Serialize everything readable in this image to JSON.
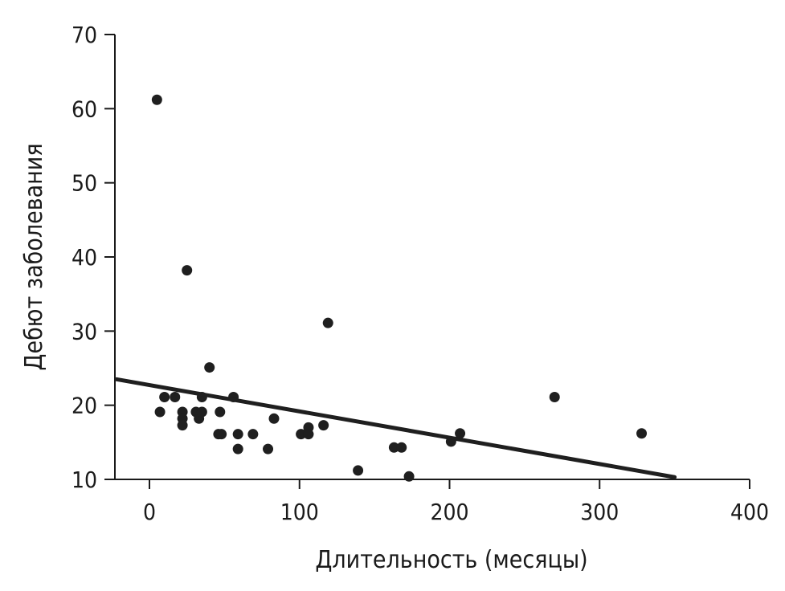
{
  "chart_data": {
    "type": "scatter",
    "title": "",
    "xlabel": "Длительность (месяцы)",
    "ylabel": "Дебют заболевания",
    "xlim": [
      -22,
      400
    ],
    "ylim": [
      10,
      70
    ],
    "xticks": [
      0,
      100,
      200,
      300,
      400
    ],
    "yticks": [
      10,
      20,
      30,
      40,
      50,
      60,
      70
    ],
    "grid": false,
    "legend": "none",
    "colors": {
      "points": "#1f1f1f",
      "trend": "#1f1f1f",
      "axes": "#1a1a1a"
    },
    "series": [
      {
        "points": [
          {
            "x": 5,
            "y": 61.2
          },
          {
            "x": 7,
            "y": 19.1
          },
          {
            "x": 10,
            "y": 21.1
          },
          {
            "x": 17,
            "y": 21.1
          },
          {
            "x": 22,
            "y": 19.1
          },
          {
            "x": 22,
            "y": 18.2
          },
          {
            "x": 22,
            "y": 17.3
          },
          {
            "x": 25,
            "y": 38.2
          },
          {
            "x": 31,
            "y": 19.1
          },
          {
            "x": 33,
            "y": 18.2
          },
          {
            "x": 35,
            "y": 19.1
          },
          {
            "x": 35,
            "y": 21.1
          },
          {
            "x": 40,
            "y": 25.1
          },
          {
            "x": 46,
            "y": 16.1
          },
          {
            "x": 47,
            "y": 19.1
          },
          {
            "x": 48,
            "y": 16.1
          },
          {
            "x": 56,
            "y": 21.1
          },
          {
            "x": 59,
            "y": 16.1
          },
          {
            "x": 59,
            "y": 14.1
          },
          {
            "x": 69,
            "y": 16.1
          },
          {
            "x": 79,
            "y": 14.1
          },
          {
            "x": 83,
            "y": 18.2
          },
          {
            "x": 101,
            "y": 16.1
          },
          {
            "x": 106,
            "y": 17.0
          },
          {
            "x": 106,
            "y": 16.1
          },
          {
            "x": 116,
            "y": 17.3
          },
          {
            "x": 119,
            "y": 31.1
          },
          {
            "x": 139,
            "y": 11.2
          },
          {
            "x": 163,
            "y": 14.3
          },
          {
            "x": 168,
            "y": 14.3
          },
          {
            "x": 173,
            "y": 10.4
          },
          {
            "x": 201,
            "y": 15.1
          },
          {
            "x": 207,
            "y": 16.2
          },
          {
            "x": 270,
            "y": 21.1
          },
          {
            "x": 328,
            "y": 16.2
          }
        ]
      }
    ],
    "trendline": {
      "x": [
        -22,
        350
      ],
      "y": [
        23.5,
        10.3
      ]
    }
  }
}
